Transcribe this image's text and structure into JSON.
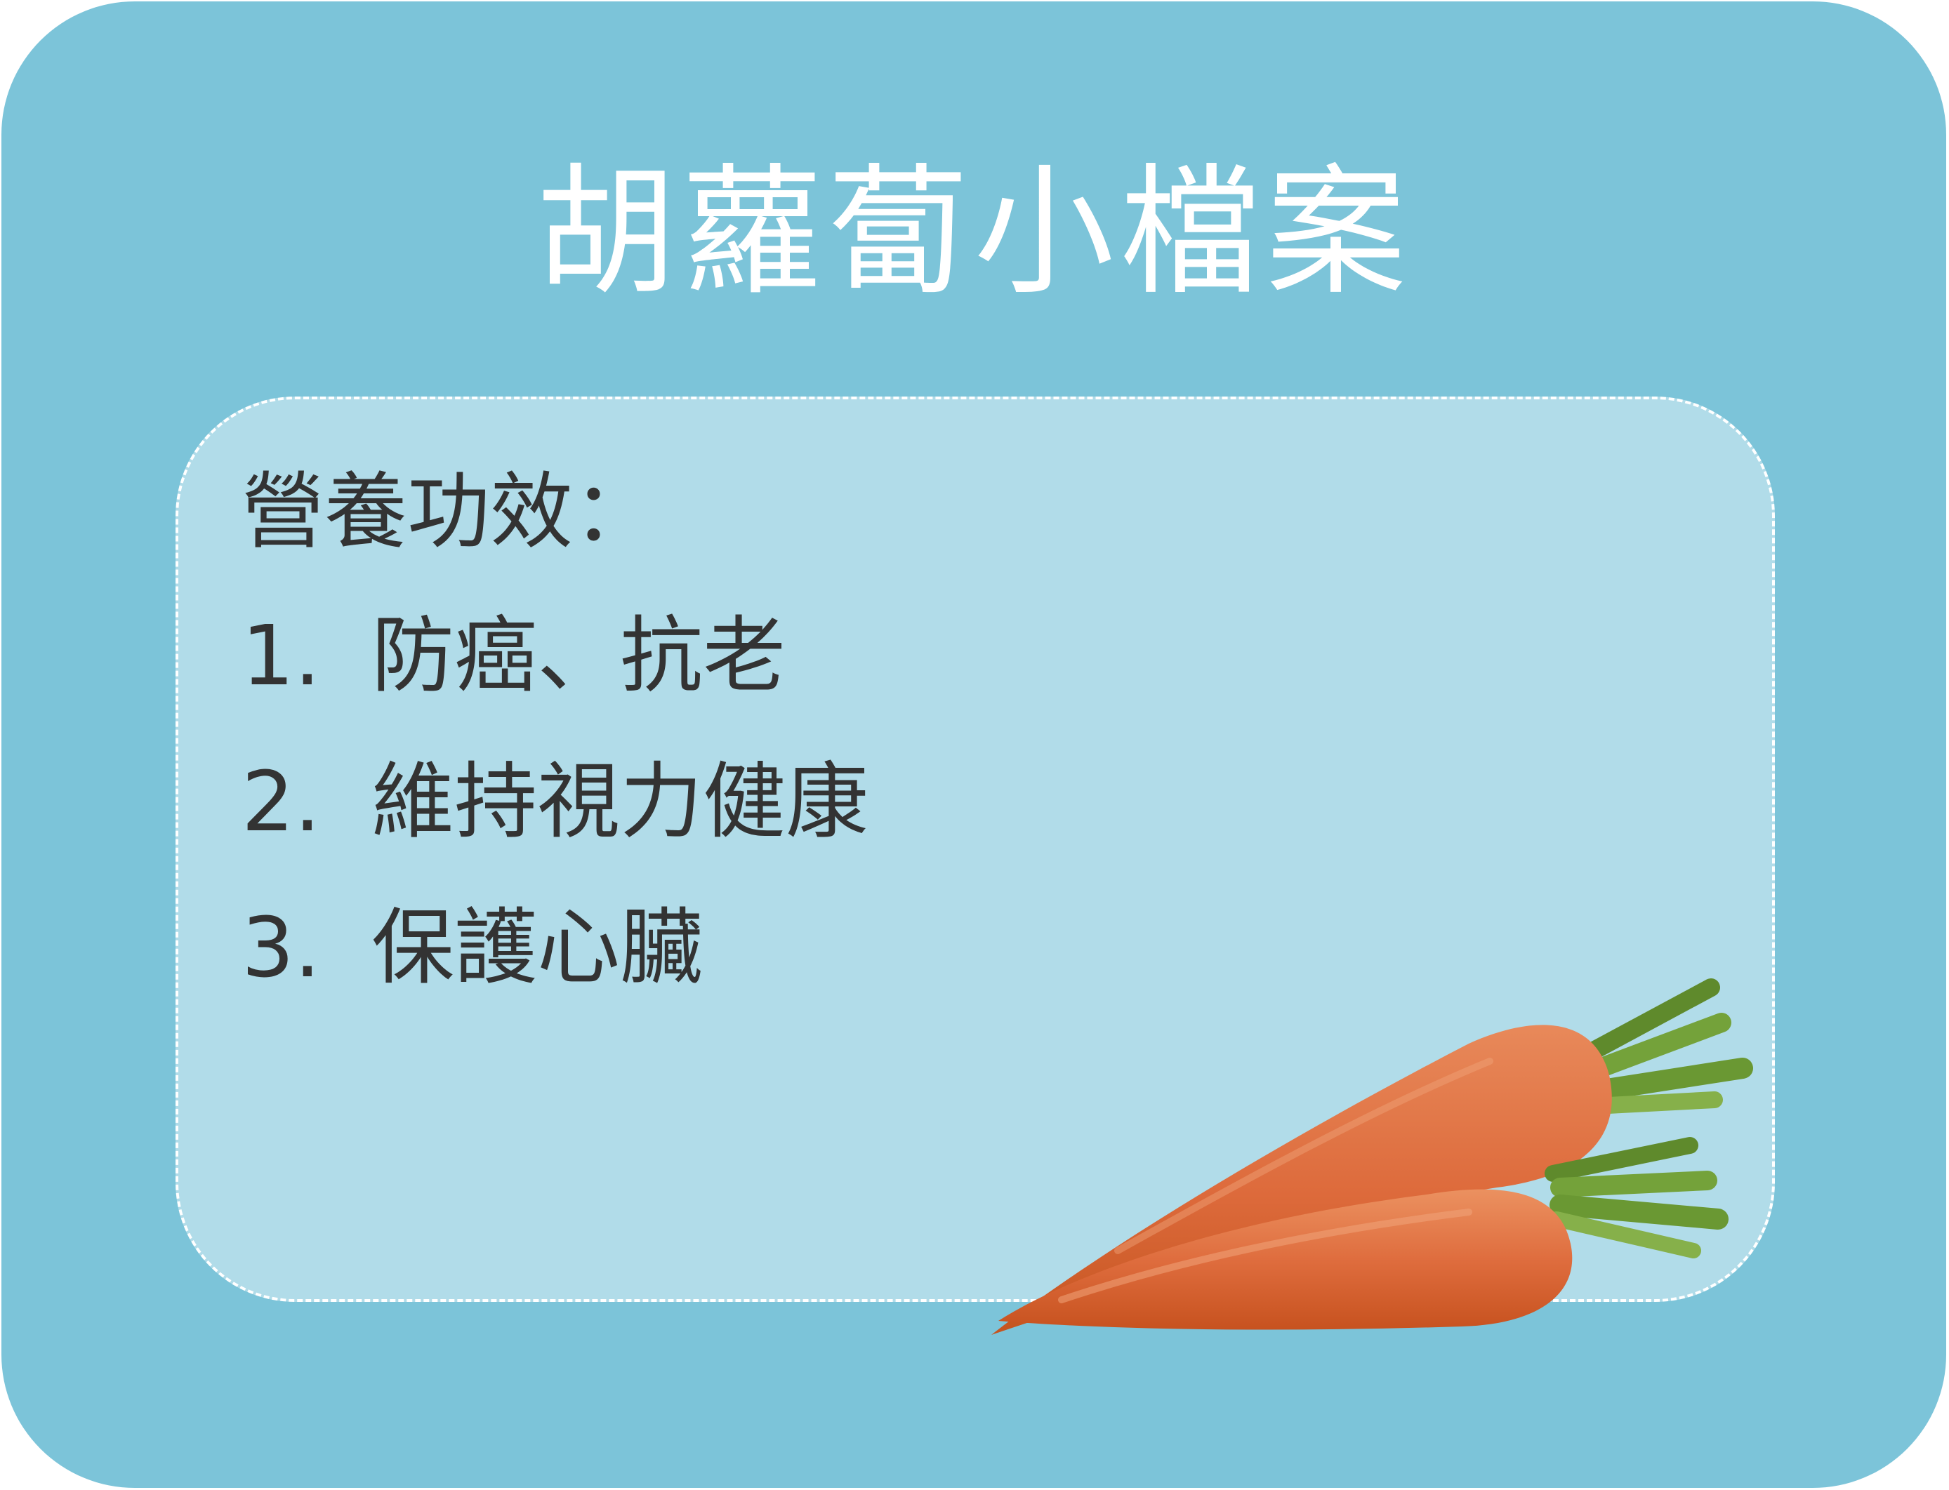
{
  "title": "胡蘿蔔小檔案",
  "panel": {
    "heading": "營養功效：",
    "benefits": [
      {
        "number": "1.",
        "text": "防癌、抗老"
      },
      {
        "number": "2.",
        "text": "維持視力健康"
      },
      {
        "number": "3.",
        "text": "保護心臟"
      }
    ]
  },
  "colors": {
    "card_background": "#7cc4d9",
    "panel_background": "#b1dce9",
    "title_text": "#ffffff",
    "body_text": "#333333",
    "carrot_orange": "#d9663a",
    "carrot_leaf": "#6f9a35"
  }
}
